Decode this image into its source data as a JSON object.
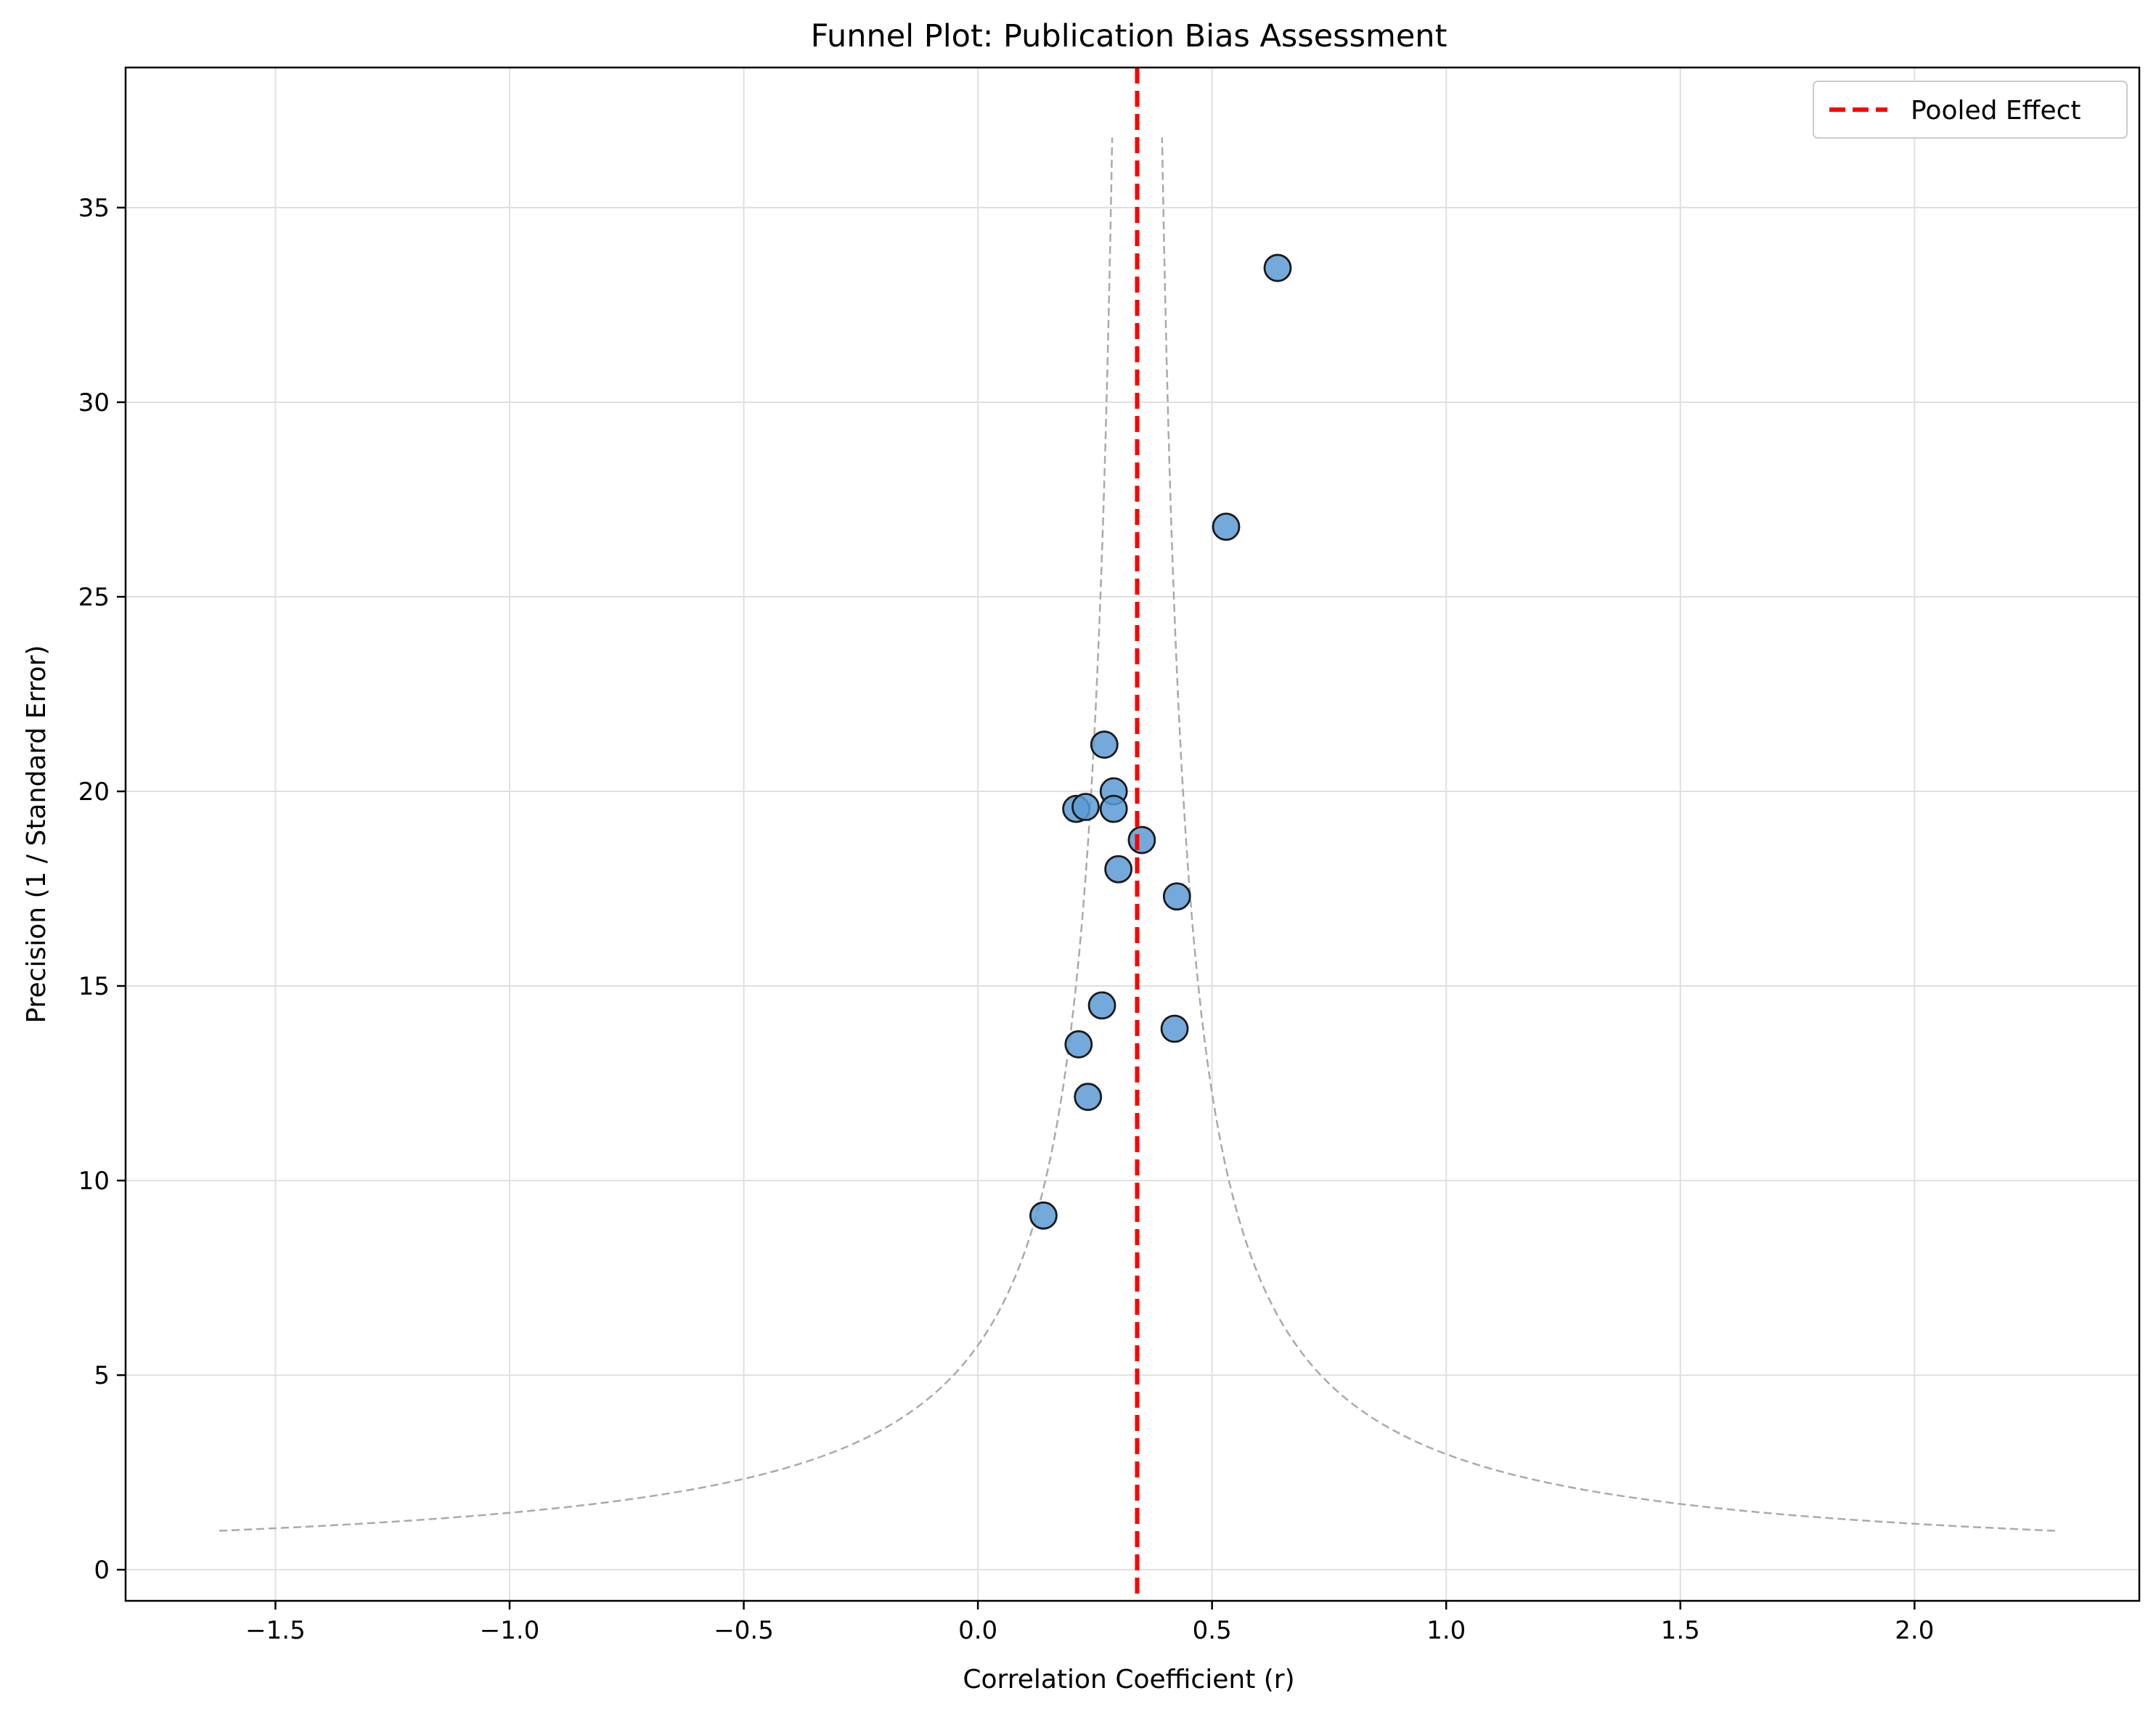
{
  "chart_data": {
    "type": "scatter",
    "title": "Funnel Plot: Publication Bias Assessment",
    "xlabel": "Correlation Coefficient (r)",
    "ylabel": "Precision (1 / Standard Error)",
    "xlim": [
      -1.82,
      2.48
    ],
    "ylim": [
      -0.8,
      38.6
    ],
    "xticks": [
      -1.5,
      -1.0,
      -0.5,
      0.0,
      0.5,
      1.0,
      1.5,
      2.0
    ],
    "xtick_labels": [
      "−1.5",
      "−1.0",
      "−0.5",
      "0.0",
      "0.5",
      "1.0",
      "1.5",
      "2.0"
    ],
    "yticks": [
      0,
      5,
      10,
      15,
      20,
      25,
      30,
      35
    ],
    "ytick_labels": [
      "0",
      "5",
      "10",
      "15",
      "20",
      "25",
      "30",
      "35"
    ],
    "grid": true,
    "legend_position": "top-right",
    "pooled_effect": 0.34,
    "points": [
      {
        "x": 0.64,
        "y": 33.45
      },
      {
        "x": 0.53,
        "y": 26.8
      },
      {
        "x": 0.27,
        "y": 21.2
      },
      {
        "x": 0.29,
        "y": 20.0
      },
      {
        "x": 0.21,
        "y": 19.55
      },
      {
        "x": 0.23,
        "y": 19.6
      },
      {
        "x": 0.29,
        "y": 19.55
      },
      {
        "x": 0.35,
        "y": 18.75
      },
      {
        "x": 0.3,
        "y": 18.0
      },
      {
        "x": 0.425,
        "y": 17.3
      },
      {
        "x": 0.265,
        "y": 14.5
      },
      {
        "x": 0.42,
        "y": 13.9
      },
      {
        "x": 0.215,
        "y": 13.5
      },
      {
        "x": 0.235,
        "y": 12.15
      },
      {
        "x": 0.14,
        "y": 9.1
      }
    ],
    "series": [
      {
        "name": "Pooled Effect",
        "type": "vline",
        "value": 0.34,
        "color": "#ff0000",
        "style": "dashed"
      },
      {
        "type": "funnel",
        "color": "#aaaaaa",
        "style": "dashed",
        "z": 1.96,
        "precision_range": [
          1,
          36.8
        ]
      }
    ],
    "colors": {
      "points_fill": "#5b9bd5",
      "points_stroke": "#1a1a1a",
      "grid": "#e0e0e0",
      "axes": "#000000"
    }
  }
}
